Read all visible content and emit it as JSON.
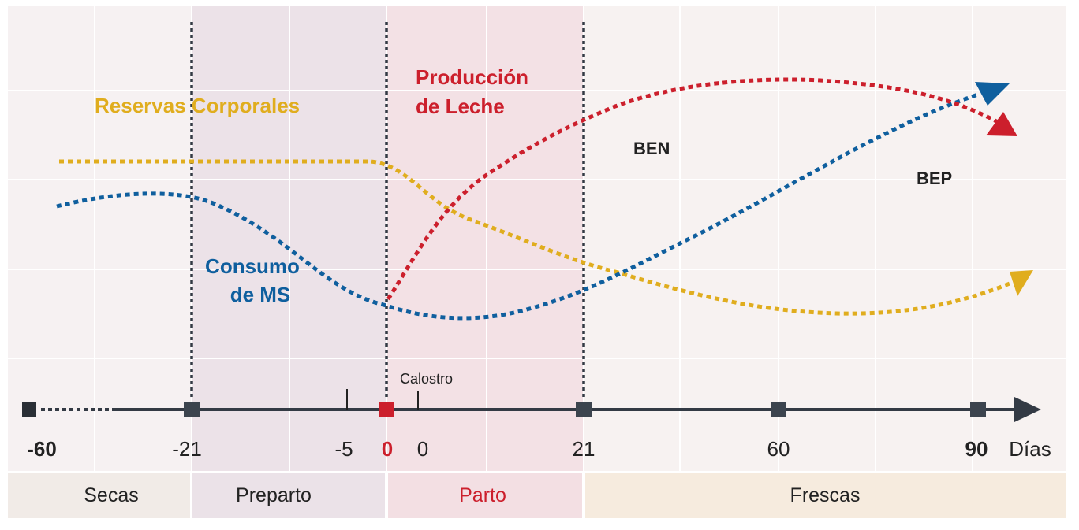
{
  "colors": {
    "reservas": "#e0ad1e",
    "consumo": "#0f5f9e",
    "produccion": "#cc1f2c",
    "axis": "#333a44",
    "text_dark": "#222222"
  },
  "labels": {
    "reservas": "Reservas Corporales",
    "produccion_1": "Producción",
    "produccion_2": "de Leche",
    "consumo_1": "Consumo",
    "consumo_2": "de MS",
    "ben": "BEN",
    "bep": "BEP",
    "calostro": "Calostro"
  },
  "axis": {
    "ticks": [
      "-60",
      "-21",
      "-5",
      "0",
      "0",
      "21",
      "60",
      "90"
    ],
    "unit": "Días"
  },
  "phases": [
    "Secas",
    "Preparto",
    "Parto",
    "Frescas"
  ]
}
